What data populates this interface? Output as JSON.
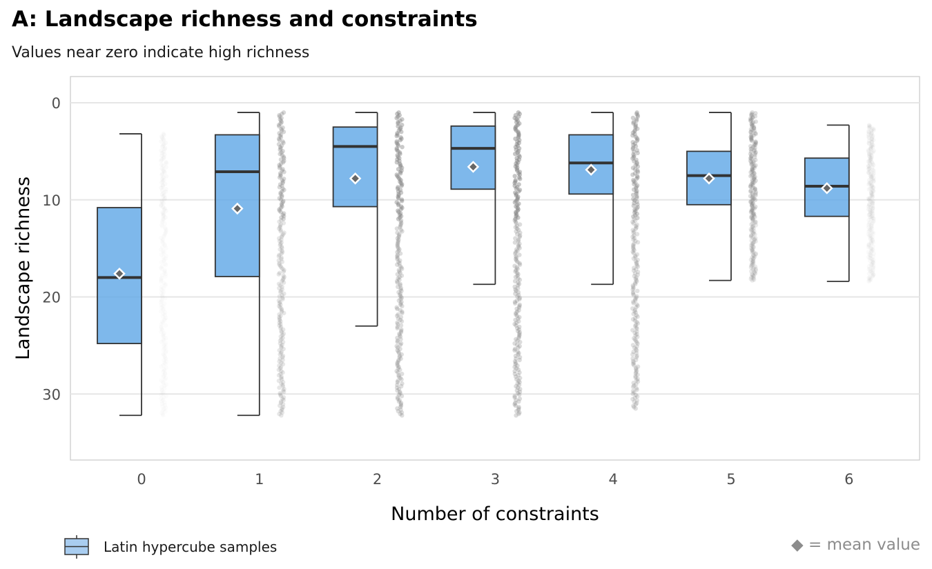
{
  "chart_data": {
    "type": "boxplot",
    "title": "A: Landscape richness and constraints",
    "subtitle": "Values near zero indicate high richness",
    "xlabel": "Number of constraints",
    "ylabel": "Landscape richness",
    "categories": [
      "0",
      "1",
      "2",
      "3",
      "4",
      "5",
      "6"
    ],
    "ylim": [
      -2.7,
      36.8
    ],
    "y_reversed": true,
    "yticks": [
      0,
      10,
      20,
      30
    ],
    "grid": true,
    "legend_position": "bottom-left",
    "box_color": "#5ea6e6",
    "median_color": "#333333",
    "points_color": "#808080",
    "series": [
      {
        "name": "Latin hypercube samples",
        "boxes": [
          {
            "category": "0",
            "whisker_low": 3.2,
            "q1": 10.8,
            "median": 18.0,
            "q3": 24.8,
            "whisker_high": 32.2,
            "mean": 17.6
          },
          {
            "category": "1",
            "whisker_low": 1.0,
            "q1": 3.3,
            "median": 7.1,
            "q3": 17.9,
            "whisker_high": 32.2,
            "mean": 10.9
          },
          {
            "category": "2",
            "whisker_low": 1.0,
            "q1": 2.5,
            "median": 4.5,
            "q3": 10.7,
            "whisker_high": 23.0,
            "mean": 7.8
          },
          {
            "category": "3",
            "whisker_low": 1.0,
            "q1": 2.4,
            "median": 4.7,
            "q3": 8.9,
            "whisker_high": 18.7,
            "mean": 6.6
          },
          {
            "category": "4",
            "whisker_low": 1.0,
            "q1": 3.3,
            "median": 6.2,
            "q3": 9.4,
            "whisker_high": 18.7,
            "mean": 6.9
          },
          {
            "category": "5",
            "whisker_low": 1.0,
            "q1": 5.0,
            "median": 7.5,
            "q3": 10.5,
            "whisker_high": 18.3,
            "mean": 7.8
          },
          {
            "category": "6",
            "whisker_low": 2.3,
            "q1": 5.7,
            "median": 8.6,
            "q3": 11.7,
            "whisker_high": 18.4,
            "mean": 8.8
          }
        ]
      }
    ],
    "sample_points": [
      {
        "category": "0",
        "range": [
          3.2,
          32.2
        ],
        "density": 0.08
      },
      {
        "category": "1",
        "range": [
          1.0,
          32.2
        ],
        "density": 0.55
      },
      {
        "category": "2",
        "range": [
          1.0,
          32.2
        ],
        "density": 0.75
      },
      {
        "category": "3",
        "range": [
          1.0,
          32.2
        ],
        "density": 0.8
      },
      {
        "category": "4",
        "range": [
          1.0,
          31.5
        ],
        "density": 0.65
      },
      {
        "category": "5",
        "range": [
          1.0,
          18.3
        ],
        "density": 0.45
      },
      {
        "category": "6",
        "range": [
          2.3,
          18.4
        ],
        "density": 0.12
      }
    ]
  },
  "legend": {
    "label": "Latin hypercube samples"
  },
  "mean_note": "◆ = mean value"
}
